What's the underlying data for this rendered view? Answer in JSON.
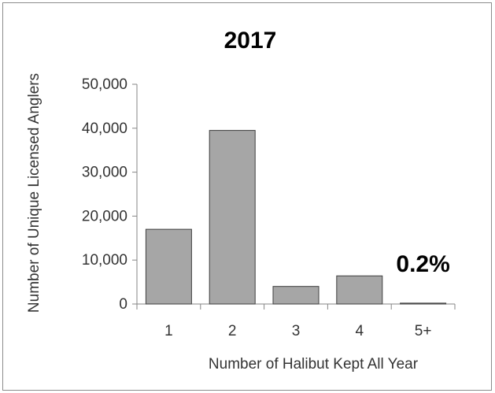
{
  "chart_data": {
    "type": "bar",
    "title": "2017",
    "xlabel": "Number of Halibut Kept All Year",
    "ylabel": "Number of Unique Licensed  Anglers",
    "categories": [
      "1",
      "2",
      "3",
      "4",
      "5+"
    ],
    "values": [
      17000,
      39500,
      4000,
      6400,
      200
    ],
    "ylim": [
      0,
      50000
    ],
    "yticks": [
      0,
      10000,
      20000,
      30000,
      40000,
      50000
    ],
    "ytick_labels": [
      "0",
      "10,000",
      "20,000",
      "30,000",
      "40,000",
      "50,000"
    ],
    "annotations": [
      {
        "text": "0.2%",
        "category": "5+"
      }
    ],
    "grid": false,
    "legend": "none",
    "colors": {
      "bar_fill": "#a6a6a6",
      "bar_stroke": "#3f3f3f",
      "axis": "#868686"
    }
  }
}
